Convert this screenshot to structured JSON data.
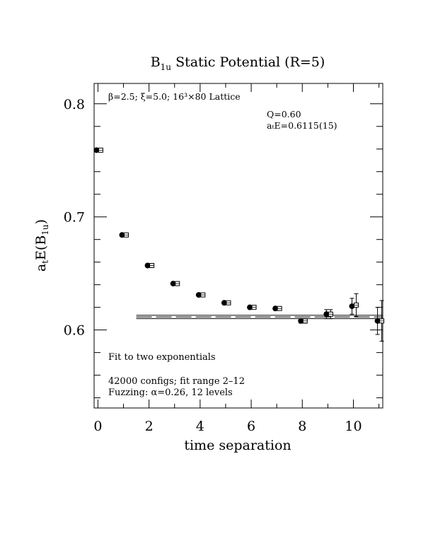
{
  "chart_data": {
    "type": "scatter",
    "title_main": "B",
    "title_sub": "1u",
    "title_rest": " Static Potential (R=5)",
    "xlabel": "time separation",
    "ylabel_a": "a",
    "ylabel_t": "t",
    "ylabel_E": "E(B",
    "ylabel_sub": "1u",
    "ylabel_close": ")",
    "xlim": [
      -0.15,
      11.15
    ],
    "ylim": [
      0.531,
      0.818
    ],
    "xticks": [
      0,
      2,
      4,
      6,
      8,
      10
    ],
    "xtick_labels": [
      "0",
      "2",
      "4",
      "6",
      "8",
      "10"
    ],
    "yticks": [
      0.6,
      0.7,
      0.8
    ],
    "ytick_labels": [
      "0.6",
      "0.7",
      "0.8"
    ],
    "annotations": {
      "top_left": "β=2.5; ξ=5.0; 16³×80 Lattice",
      "q_value": "Q=0.60",
      "fit_energy": "aₜE=0.6115(15)",
      "fit_desc": "Fit to two exponentials",
      "configs": "42000 configs; fit range 2–12",
      "fuzzing": "Fuzzing: α=0.26, 12 levels"
    },
    "series": [
      {
        "marker": "filled-circle",
        "x": [
          0,
          1,
          2,
          3,
          4,
          5,
          6,
          7,
          8,
          9,
          10,
          11
        ],
        "y": [
          0.759,
          0.684,
          0.657,
          0.641,
          0.631,
          0.624,
          0.62,
          0.619,
          0.608,
          0.614,
          0.621,
          0.608
        ],
        "err": [
          0.001,
          0.001,
          0.001,
          0.001,
          0.001,
          0.001,
          0.001,
          0.001,
          0.002,
          0.004,
          0.007,
          0.012
        ]
      },
      {
        "marker": "open-square",
        "x": [
          0,
          1,
          2,
          3,
          4,
          5,
          6,
          7,
          8,
          9,
          10,
          11
        ],
        "y": [
          0.759,
          0.684,
          0.657,
          0.641,
          0.631,
          0.624,
          0.62,
          0.619,
          0.608,
          0.614,
          0.622,
          0.608
        ],
        "err": [
          0.001,
          0.001,
          0.001,
          0.001,
          0.001,
          0.001,
          0.001,
          0.001,
          0.002,
          0.004,
          0.01,
          0.018
        ]
      }
    ],
    "fit": {
      "value": 0.6115,
      "error": 0.0015,
      "x_range": [
        1.5,
        11.15
      ]
    }
  }
}
